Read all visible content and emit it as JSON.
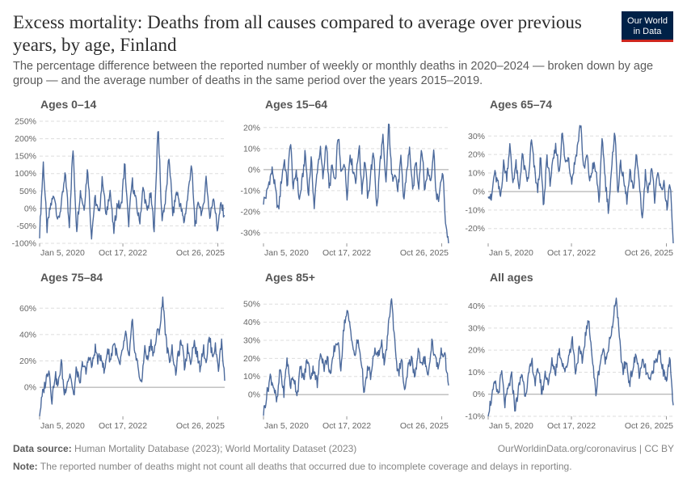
{
  "header": {
    "title": "Excess mortality: Deaths from all causes compared to average over previous years, by age, Finland",
    "subtitle": "The percentage difference between the reported number of weekly or monthly deaths in 2020–2024 — broken down by age group — and the average number of deaths in the same period over the years 2015–2019.",
    "logo_line1": "Our World",
    "logo_line2": "in Data"
  },
  "footer": {
    "source_label": "Data source:",
    "source_text": "Human Mortality Database (2023); World Mortality Dataset (2023)",
    "url": "OurWorldinData.org/coronavirus | CC BY",
    "note_label": "Note:",
    "note_text": "The reported number of deaths might not count all deaths that occurred due to incomplete coverage and delays in reporting."
  },
  "colors": {
    "line": "#4c6a9c",
    "grid": "#dddddd",
    "zero": "#a1a1a1",
    "axis": "#5b5b5b"
  },
  "chart_data": [
    {
      "type": "line",
      "title": "Ages 0–14",
      "series_name": "Ages 0–14",
      "x_start": "2020-01-05",
      "x_end": "2026-02-01",
      "x_ticks": [
        "Jan 5, 2020",
        "Oct 17, 2022",
        "Oct 26, 2025"
      ],
      "y_ticks": [
        -100,
        -50,
        0,
        50,
        100,
        150,
        200,
        250
      ],
      "y_tick_suffix": "%",
      "ylim": [
        -100,
        250
      ],
      "grid": true,
      "key_values": [
        -70,
        130,
        -60,
        10,
        40,
        -40,
        20,
        100,
        -50,
        175,
        -60,
        50,
        0,
        120,
        -80,
        30,
        -20,
        90,
        -30,
        60,
        -70,
        15,
        0,
        130,
        -50,
        80,
        20,
        -40,
        60,
        -10,
        40,
        -60,
        248,
        -30,
        20,
        150,
        -20,
        50,
        10,
        -40,
        30,
        130,
        -50,
        20,
        -20,
        90,
        -30,
        40,
        -60,
        10,
        -20
      ]
    },
    {
      "type": "line",
      "title": "Ages 15–64",
      "series_name": "Ages 15–64",
      "x_start": "2020-01-05",
      "x_end": "2026-02-01",
      "x_ticks": [
        "Jan 5, 2020",
        "Oct 17, 2022",
        "Oct 26, 2025"
      ],
      "y_ticks": [
        -30,
        -20,
        -10,
        0,
        10,
        20
      ],
      "y_tick_suffix": "%",
      "ylim": [
        -35,
        23
      ],
      "grid": true,
      "key_values": [
        -15,
        -12,
        -5,
        0,
        -10,
        -20,
        -5,
        5,
        -8,
        15,
        -10,
        0,
        -15,
        -5,
        8,
        -12,
        5,
        -18,
        0,
        10,
        -5,
        15,
        -10,
        2,
        -8,
        18,
        -3,
        5,
        -12,
        8,
        0,
        -5,
        12,
        -10,
        5,
        -15,
        0,
        8,
        -20,
        3,
        15,
        -8,
        23,
        -5,
        0,
        -10,
        5,
        -15,
        0,
        10,
        -12,
        5,
        -8,
        12,
        -10,
        0,
        -5,
        10,
        -15,
        -12,
        0,
        -25,
        -35
      ]
    },
    {
      "type": "line",
      "title": "Ages 65–74",
      "series_name": "Ages 65–74",
      "x_start": "2020-01-05",
      "x_end": "2026-02-01",
      "x_ticks": [
        "Jan 5, 2020",
        "Oct 17, 2022",
        "Oct 26, 2025"
      ],
      "y_ticks": [
        -20,
        -10,
        0,
        10,
        20,
        30
      ],
      "y_tick_suffix": "%",
      "ylim": [
        -28,
        38
      ],
      "grid": true,
      "key_values": [
        0,
        -5,
        10,
        5,
        -3,
        15,
        8,
        25,
        5,
        15,
        0,
        20,
        10,
        5,
        28,
        12,
        0,
        18,
        -10,
        20,
        5,
        15,
        25,
        10,
        32,
        15,
        20,
        5,
        15,
        25,
        38,
        10,
        20,
        5,
        15,
        10,
        -5,
        30,
        5,
        -10,
        10,
        35,
        0,
        15,
        5,
        -5,
        10,
        0,
        20,
        5,
        -15,
        10,
        0,
        15,
        -5,
        10,
        0,
        5,
        -10,
        5,
        -28
      ]
    },
    {
      "type": "line",
      "title": "Ages 75–84",
      "series_name": "Ages 75–84",
      "x_start": "2020-01-05",
      "x_end": "2026-02-01",
      "x_ticks": [
        "Jan 5, 2020",
        "Oct 17, 2022",
        "Oct 26, 2025"
      ],
      "y_ticks": [
        0,
        20,
        40,
        60
      ],
      "y_tick_suffix": "%",
      "ylim": [
        -22,
        70
      ],
      "grid": true,
      "key_values": [
        -20,
        -5,
        5,
        15,
        -10,
        10,
        0,
        20,
        -5,
        5,
        10,
        -8,
        15,
        0,
        20,
        10,
        25,
        15,
        30,
        20,
        25,
        10,
        30,
        20,
        35,
        25,
        15,
        30,
        40,
        20,
        50,
        25,
        15,
        0,
        30,
        20,
        35,
        25,
        40,
        45,
        68,
        35,
        20,
        30,
        10,
        25,
        35,
        15,
        30,
        20,
        35,
        25,
        15,
        30,
        20,
        38,
        25,
        30,
        15,
        35,
        5
      ]
    },
    {
      "type": "line",
      "title": "Ages 85+",
      "series_name": "Ages 85+",
      "x_start": "2020-01-05",
      "x_end": "2026-02-01",
      "x_ticks": [
        "Jan 5, 2020",
        "Oct 17, 2022",
        "Oct 26, 2025"
      ],
      "y_ticks": [
        0,
        10,
        20,
        30,
        40,
        50
      ],
      "y_tick_suffix": "%",
      "ylim": [
        -12,
        55
      ],
      "grid": true,
      "key_values": [
        -10,
        0,
        10,
        5,
        -5,
        15,
        0,
        20,
        5,
        10,
        0,
        15,
        8,
        20,
        10,
        15,
        5,
        25,
        15,
        20,
        10,
        25,
        30,
        15,
        40,
        45,
        35,
        20,
        30,
        20,
        0,
        15,
        10,
        25,
        20,
        30,
        15,
        35,
        54,
        30,
        10,
        20,
        0,
        15,
        20,
        10,
        25,
        15,
        20,
        10,
        30,
        20,
        15,
        25,
        20,
        5
      ]
    },
    {
      "type": "line",
      "title": "All ages",
      "series_name": "All ages",
      "x_start": "2020-01-05",
      "x_end": "2026-02-01",
      "x_ticks": [
        "Jan 5, 2020",
        "Oct 17, 2022",
        "Oct 26, 2025"
      ],
      "y_ticks": [
        -10,
        0,
        10,
        20,
        30,
        40
      ],
      "y_tick_suffix": "%",
      "ylim": [
        -10,
        45
      ],
      "grid": true,
      "key_values": [
        -8,
        -2,
        5,
        0,
        10,
        -5,
        3,
        8,
        -7,
        2,
        10,
        0,
        8,
        15,
        5,
        12,
        0,
        10,
        5,
        15,
        10,
        20,
        15,
        10,
        18,
        25,
        10,
        20,
        15,
        28,
        33,
        15,
        0,
        12,
        20,
        15,
        25,
        30,
        45,
        25,
        10,
        15,
        5,
        12,
        18,
        8,
        15,
        10,
        5,
        12,
        15,
        20,
        10,
        8,
        15,
        -5
      ]
    }
  ]
}
